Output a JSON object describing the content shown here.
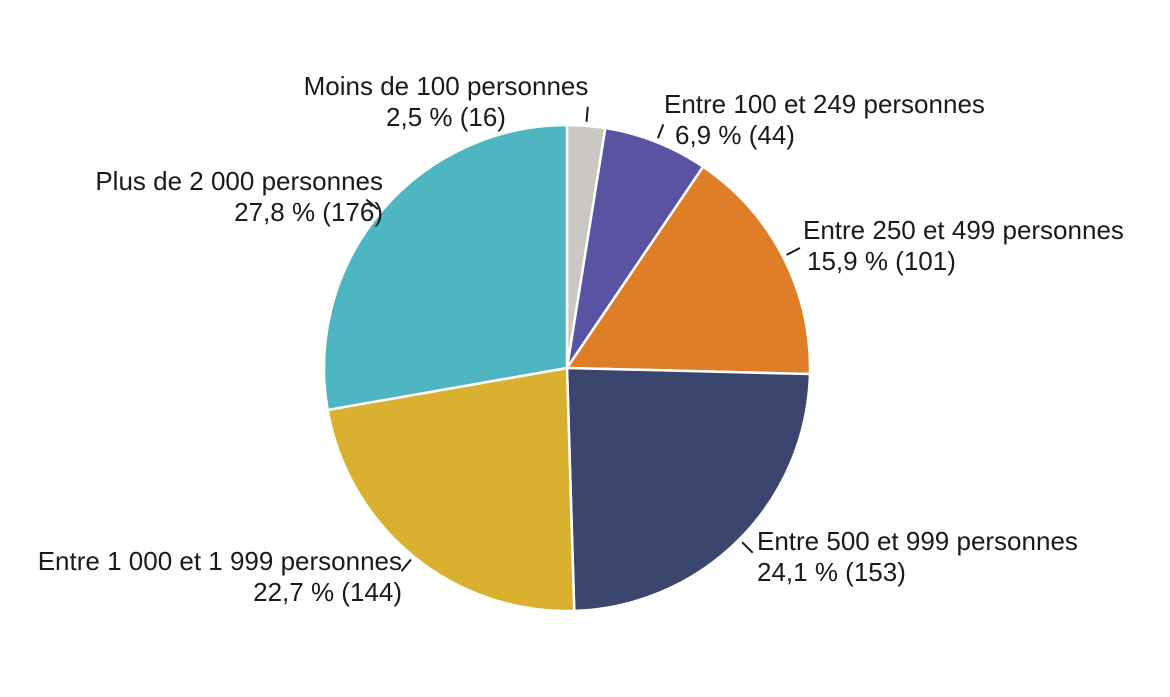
{
  "chart_data": {
    "type": "pie",
    "title": "",
    "legend_position": "none",
    "background": "#FFFFFF",
    "label_text_color": "#1A1A1A",
    "leader_tick_color": "#1A1A1A",
    "slice_gap_color": "#FFFFFF",
    "start_angle_deg": 0,
    "direction": "clockwise",
    "slices": [
      {
        "label": "Moins de 100 personnes",
        "value_label": "2,5 % (16)",
        "percent": 2.5,
        "count": 16,
        "color": "#CAC7C4"
      },
      {
        "label": "Entre 100 et 249 personnes",
        "value_label": "6,9 % (44)",
        "percent": 6.9,
        "count": 44,
        "color": "#5A53A4"
      },
      {
        "label": "Entre 250 et 499 personnes",
        "value_label": "15,9 % (101)",
        "percent": 15.9,
        "count": 101,
        "color": "#E07E27"
      },
      {
        "label": "Entre 500 et 999 personnes",
        "value_label": "24,1 % (153)",
        "percent": 24.1,
        "count": 153,
        "color": "#3A466E"
      },
      {
        "label": "Entre 1 000 et 1 999 personnes",
        "value_label": "22,7 % (144)",
        "percent": 22.7,
        "count": 144,
        "color": "#D9B02F"
      },
      {
        "label": "Plus de 2 000 personnes",
        "value_label": "27,8 % (176)",
        "percent": 27.8,
        "count": 176,
        "color": "#4DB6C0"
      }
    ]
  }
}
